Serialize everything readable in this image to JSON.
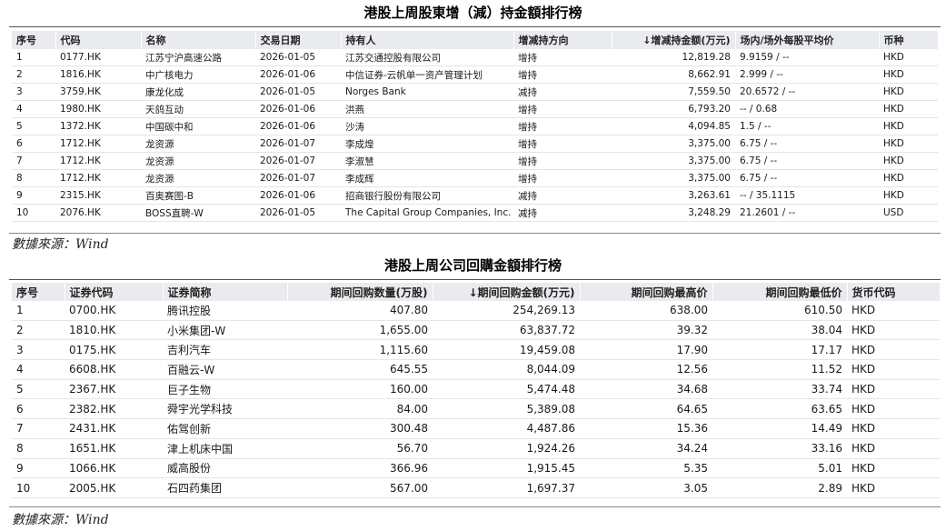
{
  "table1": {
    "title": "港股上周股東增（減）持金額排行榜",
    "headers": [
      "序号",
      "代码",
      "名称",
      "交易日期",
      "持有人",
      "增减持方向",
      "↓增减持金额(万元)",
      "场内/场外每股平均价",
      "币种"
    ],
    "rows": [
      [
        "1",
        "0177.HK",
        "江苏宁沪高速公路",
        "2026-01-05",
        "江苏交通控股有限公司",
        "增持",
        "12,819.28",
        "9.9159 / --",
        "HKD"
      ],
      [
        "2",
        "1816.HK",
        "中广核电力",
        "2026-01-06",
        "中信证券-云帆单一资产管理计划",
        "增持",
        "8,662.91",
        "2.999 / --",
        "HKD"
      ],
      [
        "3",
        "3759.HK",
        "康龙化成",
        "2026-01-05",
        "Norges Bank",
        "减持",
        "7,559.50",
        "20.6572 / --",
        "HKD"
      ],
      [
        "4",
        "1980.HK",
        "天鸽互动",
        "2026-01-06",
        "洪燕",
        "增持",
        "6,793.20",
        "-- / 0.68",
        "HKD"
      ],
      [
        "5",
        "1372.HK",
        "中国碳中和",
        "2026-01-06",
        "沙涛",
        "增持",
        "4,094.85",
        "1.5 / --",
        "HKD"
      ],
      [
        "6",
        "1712.HK",
        "龙资源",
        "2026-01-07",
        "李成煌",
        "增持",
        "3,375.00",
        "6.75 / --",
        "HKD"
      ],
      [
        "7",
        "1712.HK",
        "龙资源",
        "2026-01-07",
        "李淑慧",
        "增持",
        "3,375.00",
        "6.75 / --",
        "HKD"
      ],
      [
        "8",
        "1712.HK",
        "龙资源",
        "2026-01-07",
        "李成辉",
        "增持",
        "3,375.00",
        "6.75 / --",
        "HKD"
      ],
      [
        "9",
        "2315.HK",
        "百奥赛图-B",
        "2026-01-06",
        "招商银行股份有限公司",
        "减持",
        "3,263.61",
        "-- / 35.1115",
        "HKD"
      ],
      [
        "10",
        "2076.HK",
        "BOSS直聘-W",
        "2026-01-05",
        "The Capital Group Companies, Inc.",
        "减持",
        "3,248.29",
        "21.2601 / --",
        "USD"
      ]
    ],
    "source": "數據來源：Wind"
  },
  "table2": {
    "title": "港股上周公司回購金額排行榜",
    "headers": [
      "序号",
      "证券代码",
      "证券简称",
      "期间回购数量(万股)",
      "↓期间回购金额(万元)",
      "期间回购最高价",
      "期间回购最低价",
      "货币代码"
    ],
    "rows": [
      [
        "1",
        "0700.HK",
        "腾讯控股",
        "407.80",
        "254,269.13",
        "638.00",
        "610.50",
        "HKD"
      ],
      [
        "2",
        "1810.HK",
        "小米集团-W",
        "1,655.00",
        "63,837.72",
        "39.32",
        "38.04",
        "HKD"
      ],
      [
        "3",
        "0175.HK",
        "吉利汽车",
        "1,115.60",
        "19,459.08",
        "17.90",
        "17.17",
        "HKD"
      ],
      [
        "4",
        "6608.HK",
        "百融云-W",
        "645.55",
        "8,044.09",
        "12.56",
        "11.52",
        "HKD"
      ],
      [
        "5",
        "2367.HK",
        "巨子生物",
        "160.00",
        "5,474.48",
        "34.68",
        "33.74",
        "HKD"
      ],
      [
        "6",
        "2382.HK",
        "舜宇光学科技",
        "84.00",
        "5,389.08",
        "64.65",
        "63.65",
        "HKD"
      ],
      [
        "7",
        "2431.HK",
        "佑驾创新",
        "300.48",
        "4,487.86",
        "15.36",
        "14.49",
        "HKD"
      ],
      [
        "8",
        "1651.HK",
        "津上机床中国",
        "56.70",
        "1,924.26",
        "34.24",
        "33.16",
        "HKD"
      ],
      [
        "9",
        "1066.HK",
        "威高股份",
        "366.96",
        "1,915.45",
        "5.35",
        "5.01",
        "HKD"
      ],
      [
        "10",
        "2005.HK",
        "石四药集团",
        "567.00",
        "1,697.37",
        "3.05",
        "2.89",
        "HKD"
      ]
    ],
    "source": "數據來源：Wind"
  }
}
